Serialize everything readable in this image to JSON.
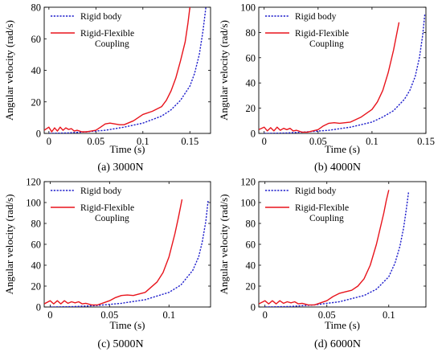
{
  "chart_data": [
    {
      "type": "line",
      "caption": "(a)  3000N",
      "xlabel": "Time (s)",
      "ylabel": "Angular velocity (rad/s)",
      "xlim": [
        -0.005,
        0.172
      ],
      "ylim": [
        0,
        80
      ],
      "xticks": [
        0,
        0.05,
        0.1,
        0.15
      ],
      "xtick_labels": [
        "0",
        "0.05",
        "0.1",
        "0.15"
      ],
      "yticks": [
        0,
        20,
        40,
        60,
        80
      ],
      "ytick_labels": [
        "0",
        "20",
        "40",
        "60",
        "80"
      ],
      "grid": false,
      "legend_position": "top-left",
      "series": [
        {
          "name": "Rigid body",
          "style": "dotted",
          "color": "#1f1fcc",
          "x": [
            0,
            0.02,
            0.04,
            0.06,
            0.08,
            0.1,
            0.12,
            0.13,
            0.14,
            0.15,
            0.155,
            0.16,
            0.164,
            0.167
          ],
          "y": [
            0,
            0.3,
            1.0,
            2.0,
            4.0,
            6.5,
            11,
            15,
            21,
            30,
            38,
            50,
            65,
            80
          ]
        },
        {
          "name": "Rigid-Flexible Coupling",
          "style": "solid",
          "color": "#e8141c",
          "x": [
            -0.005,
            0,
            0.003,
            0.006,
            0.009,
            0.012,
            0.015,
            0.018,
            0.021,
            0.024,
            0.027,
            0.03,
            0.035,
            0.04,
            0.045,
            0.05,
            0.055,
            0.06,
            0.065,
            0.07,
            0.075,
            0.08,
            0.09,
            0.1,
            0.11,
            0.12,
            0.125,
            0.13,
            0.135,
            0.14,
            0.145,
            0.148,
            0.15
          ],
          "y": [
            2,
            4,
            1,
            3.5,
            1.5,
            4,
            2,
            3.5,
            2.5,
            3,
            1.5,
            2,
            1,
            1,
            1.5,
            2,
            4,
            6,
            6.5,
            6,
            5.5,
            5.5,
            8,
            12,
            14,
            17,
            21,
            27,
            35,
            46,
            58,
            70,
            80
          ]
        }
      ]
    },
    {
      "type": "line",
      "caption": "(b)  4000N",
      "xlabel": "Time (s)",
      "ylabel": "Angular velocity (rad/s)",
      "xlim": [
        -0.005,
        0.15
      ],
      "ylim": [
        0,
        100
      ],
      "xticks": [
        0,
        0.05,
        0.1,
        0.15
      ],
      "xtick_labels": [
        "0",
        "0.05",
        "0.1",
        "0.15"
      ],
      "yticks": [
        0,
        20,
        40,
        60,
        80,
        100
      ],
      "ytick_labels": [
        "0",
        "20",
        "40",
        "60",
        "80",
        "100"
      ],
      "grid": false,
      "legend_position": "top-left",
      "series": [
        {
          "name": "Rigid body",
          "style": "dotted",
          "color": "#1f1fcc",
          "x": [
            0,
            0.02,
            0.04,
            0.06,
            0.08,
            0.1,
            0.11,
            0.12,
            0.13,
            0.135,
            0.14,
            0.144,
            0.147,
            0.149
          ],
          "y": [
            0,
            0.3,
            1.2,
            2.5,
            5,
            9,
            13,
            18,
            27,
            34,
            45,
            60,
            78,
            95
          ]
        },
        {
          "name": "Rigid-Flexible Coupling",
          "style": "solid",
          "color": "#e8141c",
          "x": [
            -0.005,
            0,
            0.003,
            0.006,
            0.009,
            0.012,
            0.015,
            0.018,
            0.021,
            0.024,
            0.027,
            0.03,
            0.035,
            0.04,
            0.045,
            0.05,
            0.055,
            0.06,
            0.065,
            0.07,
            0.08,
            0.09,
            0.1,
            0.105,
            0.11,
            0.115,
            0.12,
            0.125
          ],
          "y": [
            3,
            5,
            2,
            4.5,
            2,
            5,
            2.5,
            4,
            3,
            4,
            2,
            2.5,
            1,
            1,
            2,
            3,
            6,
            8,
            8.5,
            8,
            9,
            13,
            19,
            25,
            34,
            48,
            66,
            88
          ]
        }
      ]
    },
    {
      "type": "line",
      "caption": "(c)  5000N",
      "xlabel": "Time (s)",
      "ylabel": "Angular velocity (rad/s)",
      "xlim": [
        -0.005,
        0.135
      ],
      "ylim": [
        0,
        120
      ],
      "xticks": [
        0,
        0.05,
        0.1
      ],
      "xtick_labels": [
        "0",
        "0.05",
        "0.1"
      ],
      "yticks": [
        0,
        20,
        40,
        60,
        80,
        100,
        120
      ],
      "ytick_labels": [
        "0",
        "20",
        "40",
        "60",
        "80",
        "100",
        "120"
      ],
      "grid": false,
      "legend_position": "top-left",
      "series": [
        {
          "name": "Rigid body",
          "style": "dotted",
          "color": "#1f1fcc",
          "x": [
            0,
            0.02,
            0.04,
            0.06,
            0.08,
            0.1,
            0.11,
            0.12,
            0.125,
            0.128,
            0.131,
            0.133
          ],
          "y": [
            0,
            0.4,
            1.5,
            3.5,
            7,
            14,
            21,
            35,
            48,
            62,
            82,
            102
          ]
        },
        {
          "name": "Rigid-Flexible Coupling",
          "style": "solid",
          "color": "#e8141c",
          "x": [
            -0.005,
            0,
            0.003,
            0.006,
            0.009,
            0.012,
            0.015,
            0.018,
            0.021,
            0.024,
            0.027,
            0.03,
            0.035,
            0.04,
            0.045,
            0.05,
            0.055,
            0.06,
            0.065,
            0.07,
            0.08,
            0.09,
            0.095,
            0.1,
            0.105,
            0.108,
            0.111
          ],
          "y": [
            3,
            6,
            3,
            6,
            3,
            6,
            3.5,
            5,
            4,
            5,
            3,
            3.5,
            2,
            2,
            4,
            6,
            9,
            11,
            11.5,
            11,
            14,
            24,
            33,
            48,
            70,
            86,
            103
          ]
        }
      ]
    },
    {
      "type": "line",
      "caption": "(d)  6000N",
      "xlabel": "Time (s)",
      "ylabel": "Angular velocity (rad/s)",
      "xlim": [
        -0.005,
        0.13
      ],
      "ylim": [
        0,
        120
      ],
      "xticks": [
        0,
        0.05,
        0.1
      ],
      "xtick_labels": [
        "0",
        "0.05",
        "0.1"
      ],
      "yticks": [
        0,
        20,
        40,
        60,
        80,
        100,
        120
      ],
      "ytick_labels": [
        "0",
        "20",
        "40",
        "60",
        "80",
        "100",
        "120"
      ],
      "grid": false,
      "legend_position": "top-left",
      "series": [
        {
          "name": "Rigid body",
          "style": "dotted",
          "color": "#1f1fcc",
          "x": [
            0,
            0.02,
            0.04,
            0.06,
            0.08,
            0.09,
            0.1,
            0.105,
            0.109,
            0.112,
            0.114,
            0.116
          ],
          "y": [
            0,
            0.5,
            2,
            5,
            11,
            17,
            29,
            42,
            58,
            76,
            92,
            110
          ]
        },
        {
          "name": "Rigid-Flexible Coupling",
          "style": "solid",
          "color": "#e8141c",
          "x": [
            -0.005,
            0,
            0.003,
            0.006,
            0.009,
            0.012,
            0.015,
            0.018,
            0.021,
            0.024,
            0.027,
            0.03,
            0.035,
            0.04,
            0.045,
            0.05,
            0.055,
            0.06,
            0.065,
            0.07,
            0.075,
            0.08,
            0.085,
            0.09,
            0.093,
            0.096,
            0.098,
            0.1
          ],
          "y": [
            3,
            6,
            3,
            6,
            3,
            6,
            3.5,
            5,
            4,
            5,
            3,
            3.5,
            2,
            2,
            4,
            6,
            10,
            13,
            14.5,
            16,
            20,
            27,
            40,
            60,
            75,
            90,
            102,
            112
          ]
        }
      ]
    }
  ]
}
